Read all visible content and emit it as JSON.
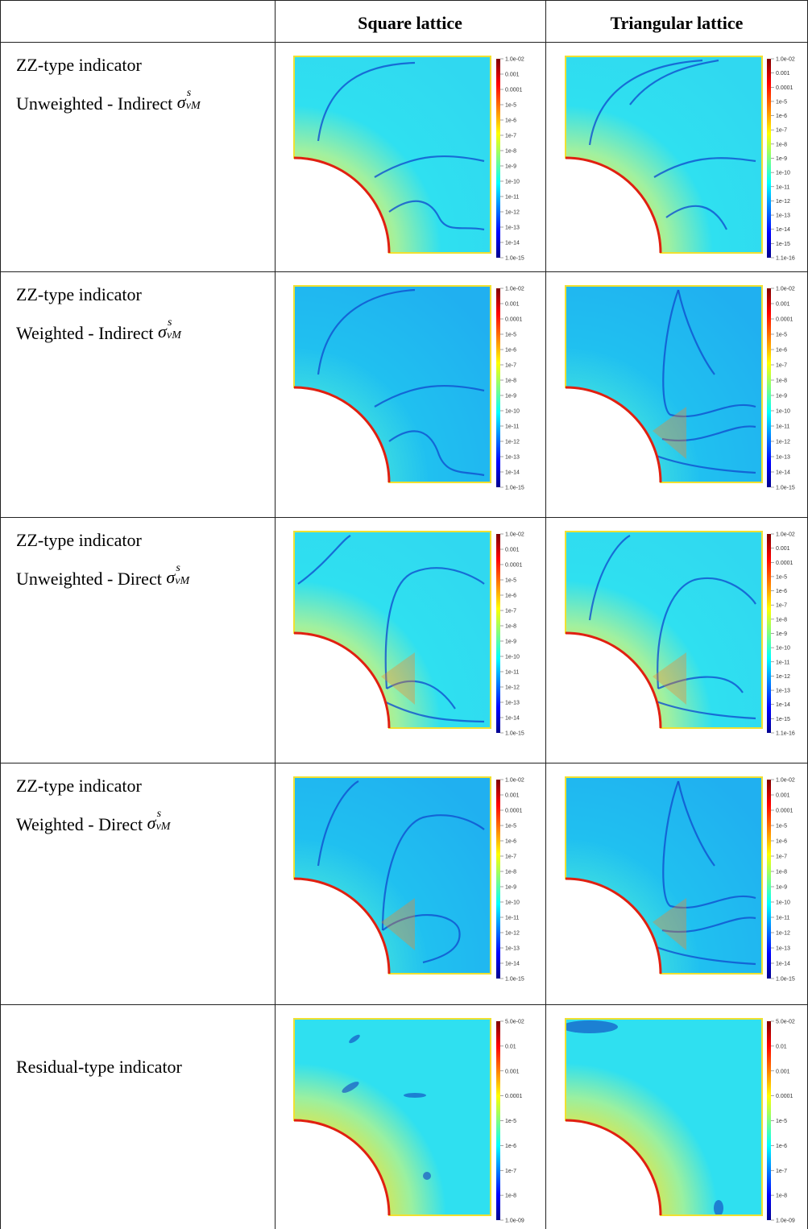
{
  "header": {
    "col1": "Square lattice",
    "col2": "Triangular lattice"
  },
  "rows": [
    {
      "line1": "ZZ-type indicator",
      "line2": "Unweighted - Indirect",
      "symbol": "σ",
      "sup": "s",
      "sub": "vM",
      "colorbar_square": [
        "1.0e-02",
        "0.001",
        "0.0001",
        "1e-5",
        "1e-6",
        "1e-7",
        "1e-8",
        "1e-9",
        "1e-10",
        "1e-11",
        "1e-12",
        "1e-13",
        "1e-14",
        "1.0e-15"
      ],
      "colorbar_triangular": [
        "1.0e-02",
        "0.001",
        "0.0001",
        "1e-5",
        "1e-6",
        "1e-7",
        "1e-8",
        "1e-9",
        "1e-10",
        "1e-11",
        "1e-12",
        "1e-13",
        "1e-14",
        "1e-15",
        "1.1e-16"
      ]
    },
    {
      "line1": "ZZ-type indicator",
      "line2": "Weighted - Indirect",
      "symbol": "σ",
      "sup": "s",
      "sub": "vM",
      "colorbar_square": [
        "1.0e-02",
        "0.001",
        "0.0001",
        "1e-5",
        "1e-6",
        "1e-7",
        "1e-8",
        "1e-9",
        "1e-10",
        "1e-11",
        "1e-12",
        "1e-13",
        "1e-14",
        "1.0e-15"
      ],
      "colorbar_triangular": [
        "1.0e-02",
        "0.001",
        "0.0001",
        "1e-5",
        "1e-6",
        "1e-7",
        "1e-8",
        "1e-9",
        "1e-10",
        "1e-11",
        "1e-12",
        "1e-13",
        "1e-14",
        "1.0e-15"
      ]
    },
    {
      "line1": "ZZ-type indicator",
      "line2": "Unweighted - Direct",
      "symbol": "σ",
      "sup": "s",
      "sub": "vM",
      "colorbar_square": [
        "1.0e-02",
        "0.001",
        "0.0001",
        "1e-5",
        "1e-6",
        "1e-7",
        "1e-8",
        "1e-9",
        "1e-10",
        "1e-11",
        "1e-12",
        "1e-13",
        "1e-14",
        "1.0e-15"
      ],
      "colorbar_triangular": [
        "1.0e-02",
        "0.001",
        "0.0001",
        "1e-5",
        "1e-6",
        "1e-7",
        "1e-8",
        "1e-9",
        "1e-10",
        "1e-11",
        "1e-12",
        "1e-13",
        "1e-14",
        "1e-15",
        "1.1e-16"
      ]
    },
    {
      "line1": "ZZ-type indicator",
      "line2": "Weighted - Direct",
      "symbol": "σ",
      "sup": "s",
      "sub": "vM",
      "colorbar_square": [
        "1.0e-02",
        "0.001",
        "0.0001",
        "1e-5",
        "1e-6",
        "1e-7",
        "1e-8",
        "1e-9",
        "1e-10",
        "1e-11",
        "1e-12",
        "1e-13",
        "1e-14",
        "1.0e-15"
      ],
      "colorbar_triangular": [
        "1.0e-02",
        "0.001",
        "0.0001",
        "1e-5",
        "1e-6",
        "1e-7",
        "1e-8",
        "1e-9",
        "1e-10",
        "1e-11",
        "1e-12",
        "1e-13",
        "1e-14",
        "1.0e-15"
      ]
    },
    {
      "line1": "Residual-type indicator",
      "line2": "",
      "symbol": "",
      "sup": "",
      "sub": "",
      "colorbar_square": [
        "5.0e-02",
        "0.01",
        "0.001",
        "0.0001",
        "1e-5",
        "1e-6",
        "1e-7",
        "1e-8",
        "1.0e-09"
      ],
      "colorbar_triangular": [
        "5.0e-02",
        "0.01",
        "0.001",
        "0.0001",
        "1e-5",
        "1e-6",
        "1e-7",
        "1e-8",
        "1.0e-09"
      ]
    }
  ],
  "colors": {
    "rainbow": [
      "#00008f",
      "#0000ff",
      "#0080ff",
      "#00ffff",
      "#80ff80",
      "#ffff00",
      "#ff8000",
      "#ff0000",
      "#800000"
    ],
    "field_base": "#2fe0f0",
    "field_warm": "#f5e030",
    "field_hot": "#ff7a10",
    "boundary": "#e02010"
  }
}
